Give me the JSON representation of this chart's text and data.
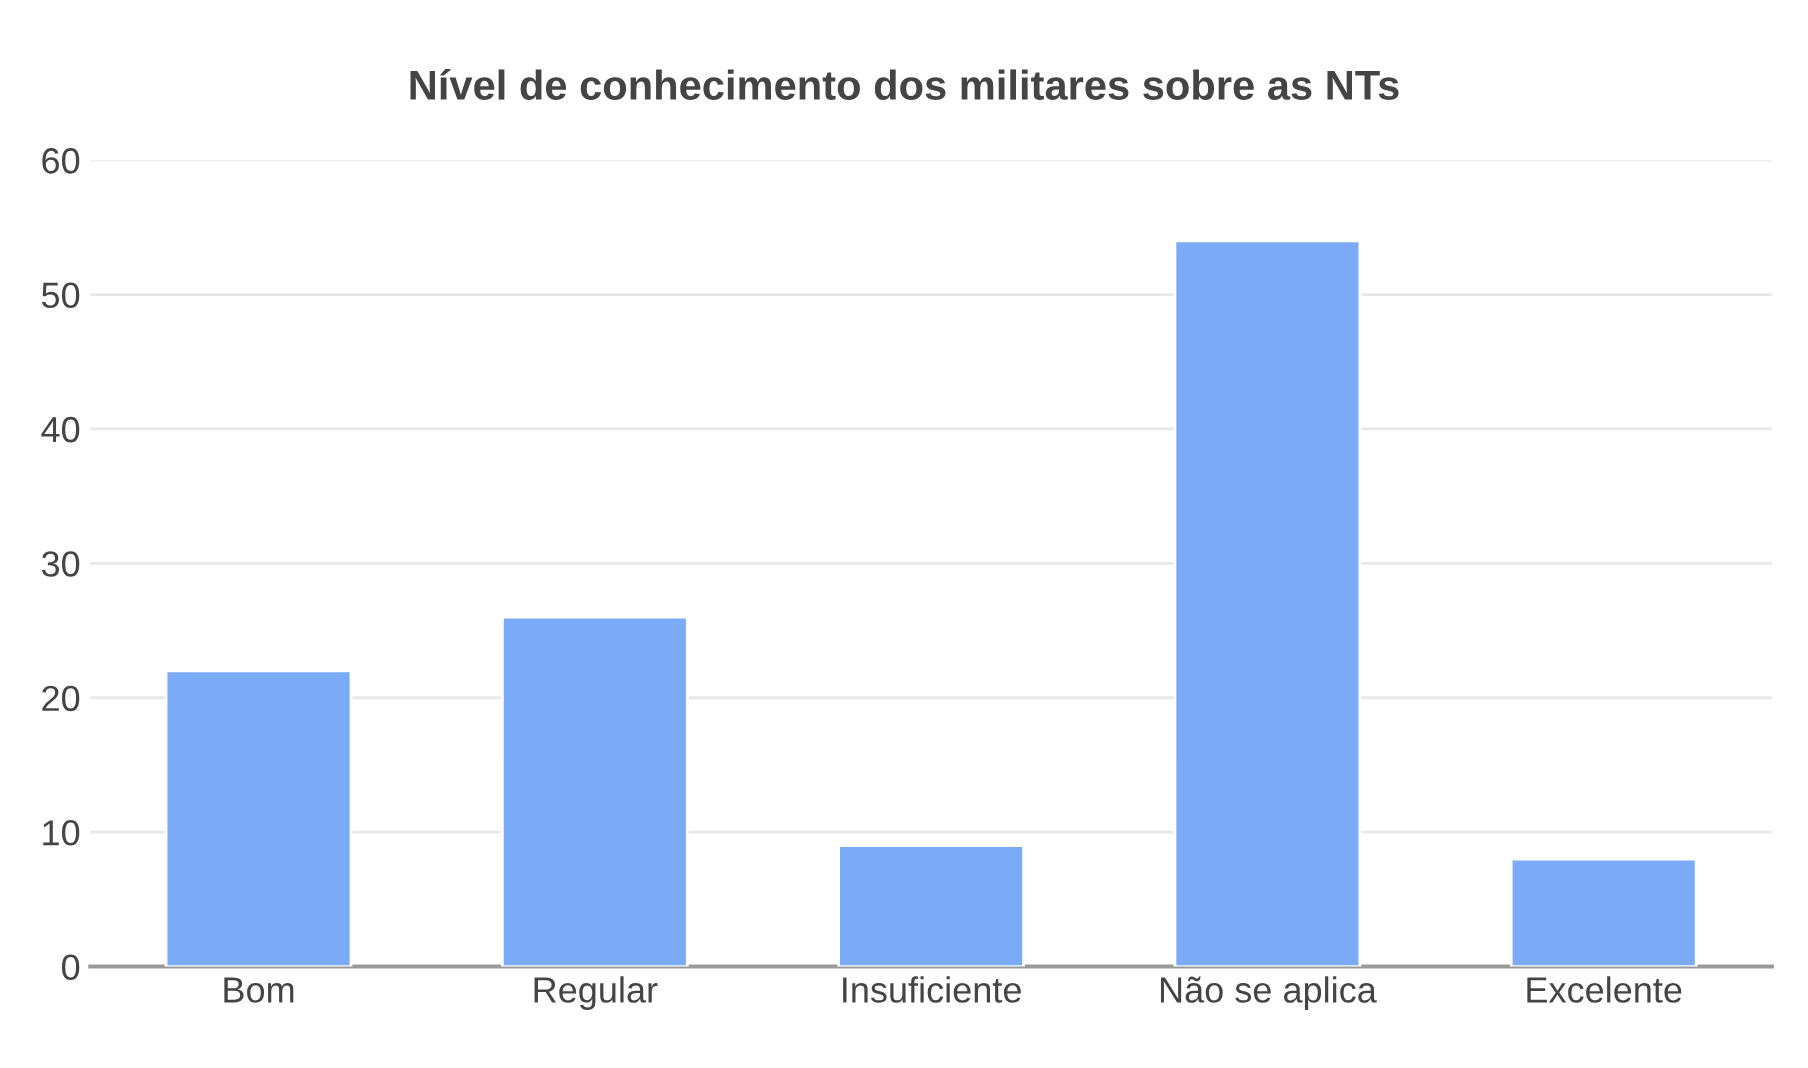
{
  "chart_data": {
    "type": "bar",
    "title": "Nível de conhecimento dos militares sobre as NTs",
    "categories": [
      "Bom",
      "Regular",
      "Insuficiente",
      "Não se aplica",
      "Excelente"
    ],
    "values": [
      22,
      26,
      9,
      54,
      8
    ],
    "color": "#7baaf7",
    "ylim": [
      0,
      60
    ],
    "yticks": [
      0,
      10,
      20,
      30,
      40,
      50,
      60
    ],
    "grid": "y"
  }
}
